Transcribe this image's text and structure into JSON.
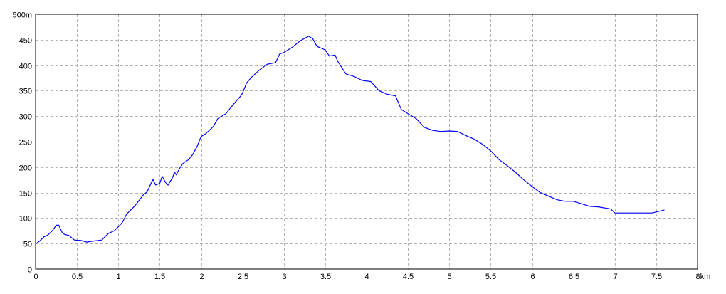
{
  "chart_data": {
    "type": "line",
    "title": "",
    "xlabel": "",
    "ylabel": "",
    "x_unit_label": "km",
    "y_unit_label": "m",
    "xlim": [
      0,
      8
    ],
    "ylim": [
      0,
      500
    ],
    "grid": true,
    "legend": "none",
    "x_ticks": [
      "0",
      "0.5",
      "1",
      "1.5",
      "2",
      "2.5",
      "3",
      "3.5",
      "4",
      "4.5",
      "5",
      "5.5",
      "6",
      "6.5",
      "7",
      "7.5",
      "8km"
    ],
    "y_ticks": [
      "0",
      "50",
      "100",
      "150",
      "200",
      "250",
      "300",
      "350",
      "400",
      "450",
      "500m"
    ],
    "colors": {
      "line": "#0000ff",
      "grid": "#b4b4b4",
      "axis": "#000000"
    },
    "series": [
      {
        "x": [
          0,
          0.05,
          0.1,
          0.15,
          0.2,
          0.25,
          0.28,
          0.32,
          0.35,
          0.4,
          0.47,
          0.55,
          0.62,
          0.7,
          0.8,
          0.88,
          0.95,
          1.0,
          1.05,
          1.1,
          1.2,
          1.3,
          1.35,
          1.4,
          1.42,
          1.45,
          1.5,
          1.53,
          1.57,
          1.6,
          1.65,
          1.68,
          1.7,
          1.75,
          1.78,
          1.85,
          1.9,
          1.95,
          2.0,
          2.05,
          2.1,
          2.15,
          2.2,
          2.3,
          2.4,
          2.48,
          2.5,
          2.55,
          2.6,
          2.7,
          2.8,
          2.9,
          2.95,
          3.0,
          3.1,
          3.2,
          3.3,
          3.35,
          3.4,
          3.5,
          3.55,
          3.62,
          3.65,
          3.75,
          3.85,
          3.95,
          4.05,
          4.15,
          4.25,
          4.35,
          4.42,
          4.5,
          4.6,
          4.7,
          4.8,
          4.9,
          5.0,
          5.1,
          5.2,
          5.3,
          5.4,
          5.5,
          5.6,
          5.7,
          5.8,
          5.9,
          6.0,
          6.1,
          6.2,
          6.3,
          6.4,
          6.5,
          6.6,
          6.7,
          6.8,
          6.95,
          7.0,
          7.45,
          7.5,
          7.6
        ],
        "y": [
          49,
          55,
          63,
          67,
          75,
          86,
          86,
          72,
          68,
          66,
          57,
          56,
          53,
          55,
          57,
          70,
          75,
          83,
          92,
          108,
          124,
          145,
          152,
          170,
          176,
          165,
          168,
          182,
          170,
          165,
          178,
          190,
          185,
          200,
          207,
          215,
          225,
          240,
          260,
          265,
          272,
          280,
          295,
          305,
          325,
          340,
          345,
          365,
          375,
          390,
          402,
          405,
          422,
          425,
          435,
          448,
          457,
          452,
          437,
          430,
          418,
          420,
          408,
          383,
          378,
          370,
          368,
          350,
          343,
          340,
          313,
          305,
          295,
          278,
          272,
          270,
          271,
          270,
          262,
          255,
          245,
          232,
          215,
          203,
          190,
          175,
          162,
          150,
          143,
          136,
          133,
          133,
          128,
          123,
          122,
          118,
          110,
          110,
          112,
          116
        ]
      }
    ]
  }
}
